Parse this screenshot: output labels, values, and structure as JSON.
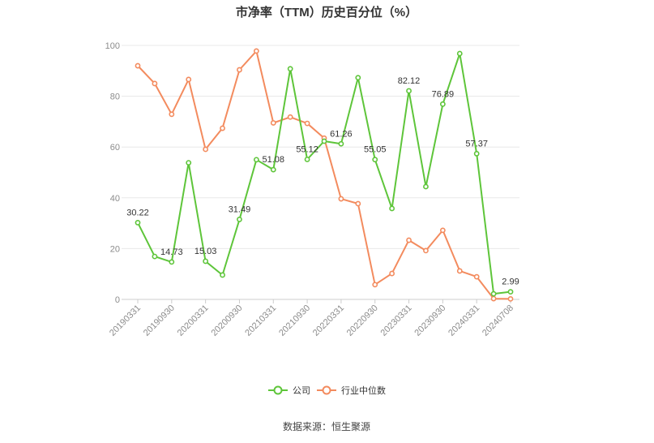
{
  "source": "数据来源：恒生聚源",
  "colors": {
    "company": "#5ec53a",
    "industry": "#f38b5e",
    "grid": "#e8e8e8",
    "axis": "#cccccc"
  },
  "chart_data": {
    "type": "line",
    "title": "市净率（TTM）历史百分位（%）",
    "xlabel": "",
    "ylabel": "",
    "x_labels": [
      "20190331",
      null,
      "20190930",
      null,
      "20200331",
      null,
      "20200930",
      null,
      "20210331",
      null,
      "20210930",
      null,
      "20220331",
      null,
      "20220930",
      null,
      "20230331",
      null,
      "20230930",
      null,
      "20240331",
      null,
      "20240708"
    ],
    "ylim": [
      0,
      100
    ],
    "yticks": [
      0,
      20,
      40,
      60,
      80,
      100
    ],
    "grid": true,
    "legend_position": "bottom",
    "series": [
      {
        "name": "公司",
        "color": "#5ec53a",
        "values": [
          30.22,
          16.9,
          14.73,
          53.8,
          15.03,
          9.6,
          31.49,
          55.0,
          51.08,
          90.8,
          55.12,
          62.3,
          61.26,
          87.3,
          55.05,
          35.8,
          82.12,
          44.4,
          76.89,
          96.8,
          57.37,
          2.2,
          2.99
        ],
        "label_indices": [
          0,
          2,
          4,
          6,
          8,
          10,
          12,
          14,
          16,
          18,
          20,
          22
        ]
      },
      {
        "name": "行业中位数",
        "color": "#f38b5e",
        "values": [
          92.0,
          85.0,
          72.9,
          86.6,
          59.1,
          67.4,
          90.4,
          97.8,
          69.5,
          71.8,
          69.3,
          63.5,
          39.6,
          37.7,
          5.8,
          10.2,
          23.3,
          19.2,
          27.2,
          11.2,
          8.9,
          0.3,
          0.2
        ]
      }
    ]
  }
}
